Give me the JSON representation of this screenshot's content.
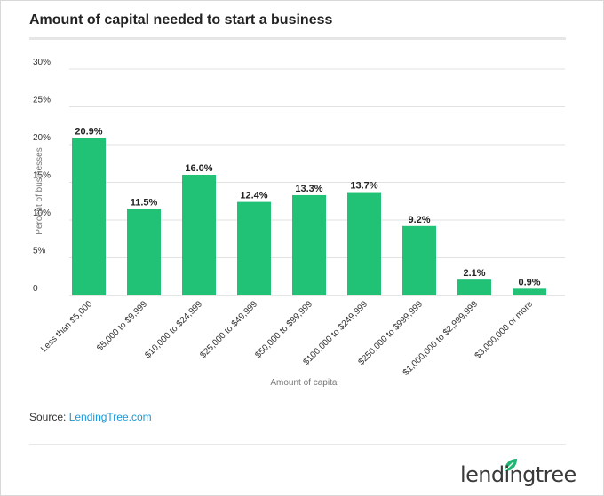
{
  "title": "Amount of capital needed to start a business",
  "source_label": "Source: ",
  "source_link": "LendingTree.com",
  "logo_text": "lendingtree",
  "colors": {
    "bar": "#21c275",
    "grid": "#e2e2e2",
    "text": "#333333",
    "axis_label": "#777777"
  },
  "chart_data": {
    "type": "bar",
    "categories": [
      "Less than $5,000",
      "$5,000 to $9,999",
      "$10,000 to $24,999",
      "$25,000 to $49,999",
      "$50,000 to $99,999",
      "$100,000 to $249,999",
      "$250,000 to $999,999",
      "$1,000,000 to $2,999,999",
      "$3,000,000 or more"
    ],
    "values": [
      20.9,
      11.5,
      16.0,
      12.4,
      13.3,
      13.7,
      9.2,
      2.1,
      0.9
    ],
    "data_labels": [
      "20.9%",
      "11.5%",
      "16.0%",
      "12.4%",
      "13.3%",
      "13.7%",
      "9.2%",
      "2.1%",
      "0.9%"
    ],
    "xlabel": "Amount of capital",
    "ylabel": "Percent of businesses",
    "ylim": [
      0,
      30
    ],
    "yticks": [
      0,
      5,
      10,
      15,
      20,
      25,
      30
    ],
    "ytick_labels": [
      "0",
      "5%",
      "10%",
      "15%",
      "20%",
      "25%",
      "30%"
    ],
    "grid": true
  }
}
